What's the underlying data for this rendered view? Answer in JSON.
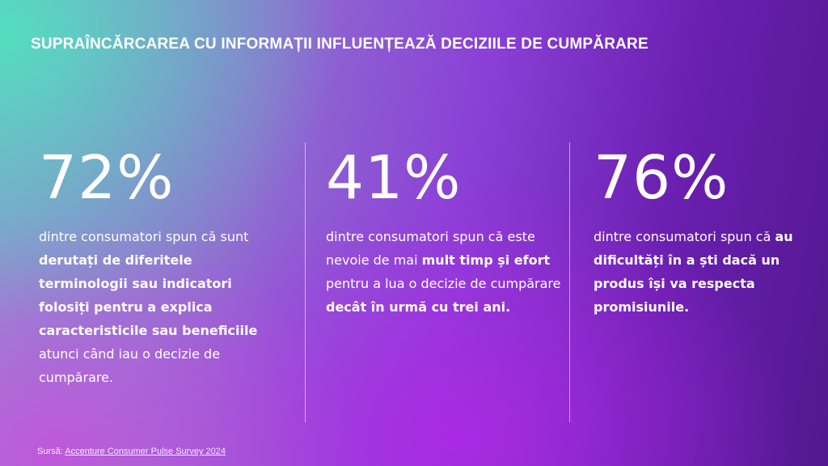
{
  "slide": {
    "title": "SUPRAÎNCĂRCAREA CU INFORMAȚII INFLUENȚEAZĂ DECIZIILE DE CUMPĂRARE",
    "stats": [
      {
        "number": "72%",
        "text_before": "dintre consumatori spun că sunt ",
        "text_bold": "derutați de diferitele terminologii sau indicatori folosiți pentru a explica caracteristicile sau beneficiile",
        "text_middle": " atunci când iau o decizie de cumpărare.",
        "text_bold2": "",
        "text_after": ""
      },
      {
        "number": "41%",
        "text_before": "dintre consumatori spun că este nevoie de mai ",
        "text_bold": "mult timp și efort",
        "text_middle": " pentru a lua o decizie de cumpărare ",
        "text_bold2": "decât în urmă cu trei ani.",
        "text_after": ""
      },
      {
        "number": "76%",
        "text_before": "dintre consumatori spun că ",
        "text_bold": "au dificultăți în a ști dacă un produs își va respecta promisiunile.",
        "text_middle": "",
        "text_bold2": "",
        "text_after": ""
      }
    ],
    "source": {
      "label": "Sursă: ",
      "link_text": "Accenture Consumer Pulse Survey 2024"
    }
  }
}
